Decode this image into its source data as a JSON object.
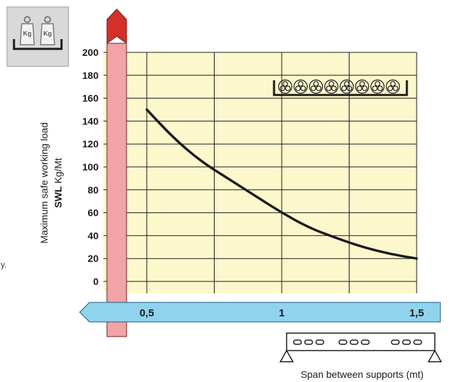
{
  "chart_data": {
    "type": "line",
    "title": "",
    "ylabel_line1": "Maximum safe working load",
    "ylabel_bold": "SWL",
    "ylabel_unit": "Kg/Mt",
    "xlabel": "Span between supports (mt)",
    "x_ticks": [
      {
        "value": 0.5,
        "label": "0,5"
      },
      {
        "value": 1,
        "label": "1"
      },
      {
        "value": 1.5,
        "label": "1,5"
      }
    ],
    "y_ticks": [
      "0",
      "20",
      "40",
      "60",
      "80",
      "100",
      "120",
      "140",
      "160",
      "180",
      "200"
    ],
    "xlim": [
      0.5,
      1.5
    ],
    "ylim": [
      0,
      200
    ],
    "grid": true,
    "series": [
      {
        "name": "",
        "x": [
          0.5,
          0.6,
          0.7,
          0.8,
          0.9,
          1.0,
          1.1,
          1.2,
          1.3,
          1.4,
          1.5
        ],
        "y": [
          150,
          125,
          105,
          90,
          75,
          60,
          47,
          38,
          30,
          24,
          20
        ]
      }
    ],
    "colors": {
      "plot_bg": "#fdf8cc",
      "grid": "#1a1a1a",
      "curve": "#1a1a1a",
      "y_band": "#f2a3a7",
      "y_arrow_tip": "#d3302a",
      "x_band": "#8fd3ef"
    }
  },
  "fragments": {
    "left_edge_text": "y."
  },
  "icons": {
    "weights": "kg-weights-icon",
    "cables": "cable-bundle-icon",
    "support": "span-support-icon"
  },
  "weight_label": "Kg"
}
